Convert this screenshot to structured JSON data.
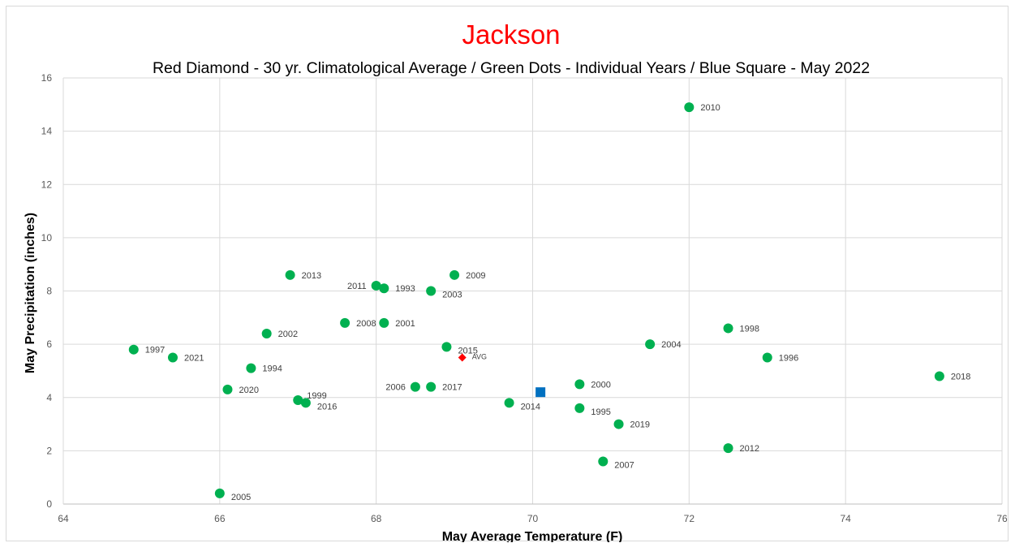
{
  "chart_data": {
    "type": "scatter",
    "title": "Jackson",
    "subtitle": "Red Diamond - 30 yr. Climatological Average / Green Dots - Individual Years / Blue Square - May 2022",
    "xlabel": "May Average Temperature (F)",
    "ylabel": "May Precipitation (inches)",
    "xlim": [
      64,
      76
    ],
    "ylim": [
      0,
      16
    ],
    "xticks": [
      "64",
      "66",
      "68",
      "70",
      "72",
      "74",
      "76"
    ],
    "yticks": [
      "0",
      "2",
      "4",
      "6",
      "8",
      "10",
      "12",
      "14",
      "16"
    ],
    "grid": true,
    "series": [
      {
        "color": "#00b050",
        "marker": "circle",
        "points": [
          {
            "label": "1993",
            "x": 68.1,
            "y": 8.1
          },
          {
            "label": "1994",
            "x": 66.4,
            "y": 5.1
          },
          {
            "label": "1995",
            "x": 70.6,
            "y": 3.6
          },
          {
            "label": "1996",
            "x": 73.0,
            "y": 5.5
          },
          {
            "label": "1997",
            "x": 64.9,
            "y": 5.8
          },
          {
            "label": "1998",
            "x": 72.5,
            "y": 6.6
          },
          {
            "label": "1999",
            "x": 67.0,
            "y": 3.9
          },
          {
            "label": "2000",
            "x": 70.6,
            "y": 4.5
          },
          {
            "label": "2001",
            "x": 68.1,
            "y": 6.8
          },
          {
            "label": "2002",
            "x": 66.6,
            "y": 6.4
          },
          {
            "label": "2003",
            "x": 68.7,
            "y": 8.0
          },
          {
            "label": "2004",
            "x": 71.5,
            "y": 6.0
          },
          {
            "label": "2005",
            "x": 66.0,
            "y": 0.4
          },
          {
            "label": "2006",
            "x": 68.5,
            "y": 4.4
          },
          {
            "label": "2007",
            "x": 70.9,
            "y": 1.6
          },
          {
            "label": "2008",
            "x": 67.6,
            "y": 6.8
          },
          {
            "label": "2009",
            "x": 69.0,
            "y": 8.6
          },
          {
            "label": "2010",
            "x": 72.0,
            "y": 14.9
          },
          {
            "label": "2011",
            "x": 68.0,
            "y": 8.2
          },
          {
            "label": "2012",
            "x": 72.5,
            "y": 2.1
          },
          {
            "label": "2013",
            "x": 66.9,
            "y": 8.6
          },
          {
            "label": "2014",
            "x": 69.7,
            "y": 3.8
          },
          {
            "label": "2015",
            "x": 68.9,
            "y": 5.9
          },
          {
            "label": "2016",
            "x": 67.1,
            "y": 3.8
          },
          {
            "label": "2017",
            "x": 68.7,
            "y": 4.4
          },
          {
            "label": "2018",
            "x": 75.2,
            "y": 4.8
          },
          {
            "label": "2019",
            "x": 71.1,
            "y": 3.0
          },
          {
            "label": "2020",
            "x": 66.1,
            "y": 4.3
          },
          {
            "label": "2021",
            "x": 65.4,
            "y": 5.5
          }
        ]
      },
      {
        "color": "#ff0000",
        "marker": "diamond",
        "points": [
          {
            "label": "AVG",
            "x": 69.1,
            "y": 5.5
          }
        ]
      },
      {
        "color": "#0070c0",
        "marker": "square",
        "points": [
          {
            "label": "",
            "x": 70.1,
            "y": 4.2
          }
        ]
      }
    ]
  }
}
